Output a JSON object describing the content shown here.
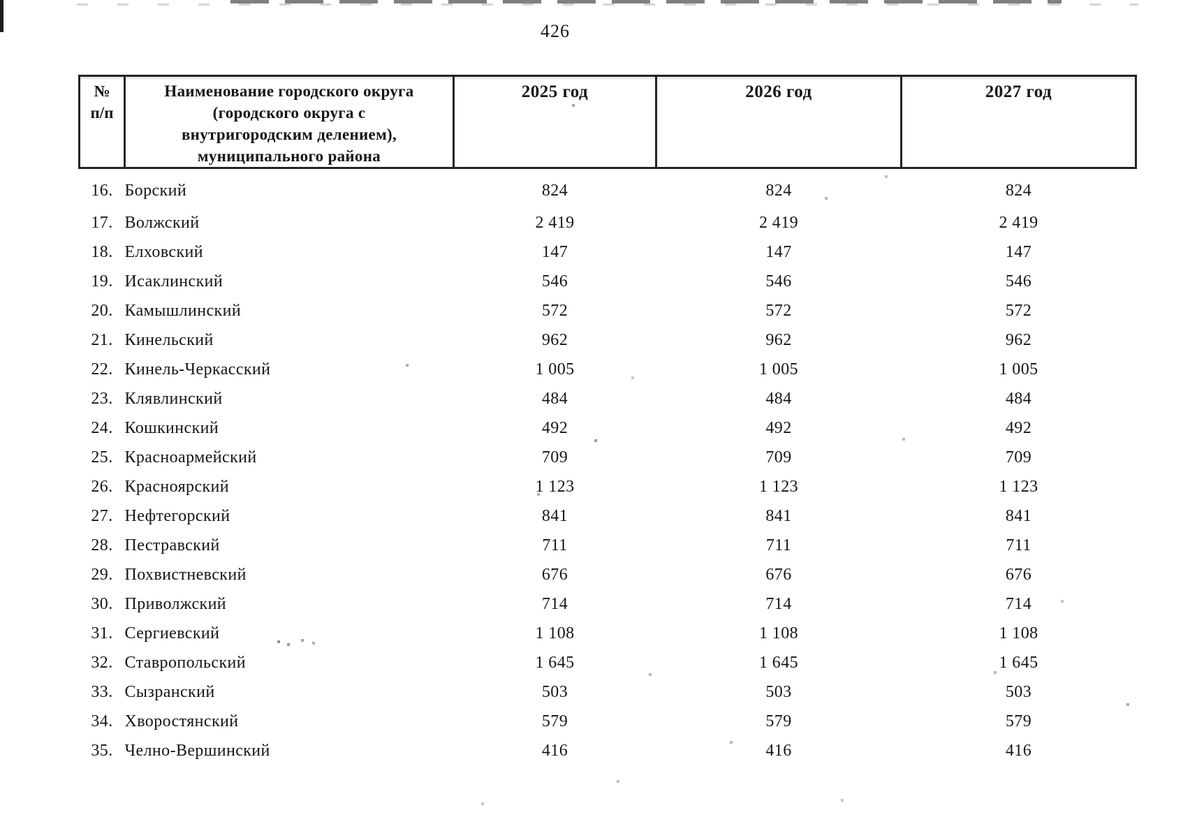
{
  "page": {
    "number": "426"
  },
  "table": {
    "columns": {
      "num": "№\nп/п",
      "name": "Наименование городского округа\n(городского округа с\nвнутригородским делением),\nмуниципального района",
      "y2025": "2025 год",
      "y2026": "2026 год",
      "y2027": "2027 год"
    },
    "rows": [
      {
        "num": "16.",
        "name": "Борский",
        "y2025": "824",
        "y2026": "824",
        "y2027": "824"
      },
      {
        "num": "17.",
        "name": "Волжский",
        "y2025": "2 419",
        "y2026": "2 419",
        "y2027": "2 419"
      },
      {
        "num": "18.",
        "name": "Елховский",
        "y2025": "147",
        "y2026": "147",
        "y2027": "147"
      },
      {
        "num": "19.",
        "name": "Исаклинский",
        "y2025": "546",
        "y2026": "546",
        "y2027": "546"
      },
      {
        "num": "20.",
        "name": "Камышлинский",
        "y2025": "572",
        "y2026": "572",
        "y2027": "572"
      },
      {
        "num": "21.",
        "name": "Кинельский",
        "y2025": "962",
        "y2026": "962",
        "y2027": "962"
      },
      {
        "num": "22.",
        "name": "Кинель-Черкасский",
        "y2025": "1 005",
        "y2026": "1 005",
        "y2027": "1 005"
      },
      {
        "num": "23.",
        "name": "Клявлинский",
        "y2025": "484",
        "y2026": "484",
        "y2027": "484"
      },
      {
        "num": "24.",
        "name": "Кошкинский",
        "y2025": "492",
        "y2026": "492",
        "y2027": "492"
      },
      {
        "num": "25.",
        "name": "Красноармейский",
        "y2025": "709",
        "y2026": "709",
        "y2027": "709"
      },
      {
        "num": "26.",
        "name": "Красноярский",
        "y2025": "1 123",
        "y2026": "1 123",
        "y2027": "1 123"
      },
      {
        "num": "27.",
        "name": "Нефтегорский",
        "y2025": "841",
        "y2026": "841",
        "y2027": "841"
      },
      {
        "num": "28.",
        "name": "Пестравский",
        "y2025": "711",
        "y2026": "711",
        "y2027": "711"
      },
      {
        "num": "29.",
        "name": "Похвистневский",
        "y2025": "676",
        "y2026": "676",
        "y2027": "676"
      },
      {
        "num": "30.",
        "name": "Приволжский",
        "y2025": "714",
        "y2026": "714",
        "y2027": "714"
      },
      {
        "num": "31.",
        "name": "Сергиевский",
        "y2025": "1 108",
        "y2026": "1 108",
        "y2027": "1 108"
      },
      {
        "num": "32.",
        "name": "Ставропольский",
        "y2025": "1 645",
        "y2026": "1 645",
        "y2027": "1 645"
      },
      {
        "num": "33.",
        "name": "Сызранский",
        "y2025": "503",
        "y2026": "503",
        "y2027": "503"
      },
      {
        "num": "34.",
        "name": "Хворостянский",
        "y2025": "579",
        "y2026": "579",
        "y2027": "579"
      },
      {
        "num": "35.",
        "name": "Челно-Вершинский",
        "y2025": "416",
        "y2026": "416",
        "y2027": "416"
      }
    ]
  }
}
